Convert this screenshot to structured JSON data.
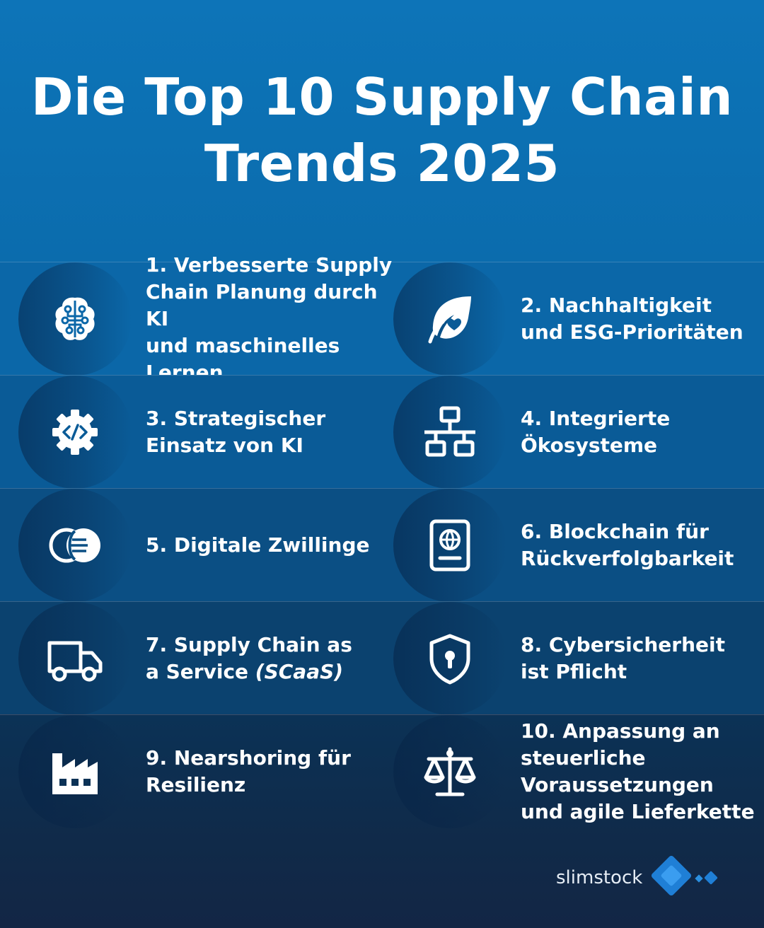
{
  "title": {
    "line1": "Die Top 10 Supply Chain",
    "line2": "Trends 2025"
  },
  "trends": [
    {
      "lines": [
        "1. Verbesserte Supply",
        "Chain Planung durch KI",
        "und maschinelles Lernen"
      ],
      "icon": "brain-circuit-icon"
    },
    {
      "lines": [
        "2. Nachhaltigkeit",
        "und ESG-Prioritäten"
      ],
      "icon": "leaf-heart-icon"
    },
    {
      "lines": [
        "3. Strategischer",
        "Einsatz von KI"
      ],
      "icon": "gear-code-icon"
    },
    {
      "lines": [
        "4. Integrierte",
        "Ökosysteme"
      ],
      "icon": "network-icon"
    },
    {
      "lines": [
        "5. Digitale Zwillinge"
      ],
      "icon": "digital-twin-icon"
    },
    {
      "lines": [
        "6. Blockchain für",
        "Rückverfolgbarkeit"
      ],
      "icon": "passport-globe-icon"
    },
    {
      "line1": "7. Supply Chain as",
      "line2_plain": "a Service ",
      "line2_italic": "(SCaaS)",
      "icon": "truck-icon"
    },
    {
      "lines": [
        "8. Cybersicherheit",
        "ist Pflicht"
      ],
      "icon": "shield-lock-icon"
    },
    {
      "lines": [
        "9. Nearshoring für",
        "Resilienz"
      ],
      "icon": "factory-icon"
    },
    {
      "lines": [
        "10. Anpassung an",
        "steuerliche",
        "Voraussetzungen",
        "und agile Lieferkette"
      ],
      "icon": "scales-icon"
    }
  ],
  "brand": {
    "name": "slimstock"
  },
  "colors": {
    "header": "#0b6cad",
    "accent": "#2b8fe0",
    "text": "#ffffff"
  }
}
